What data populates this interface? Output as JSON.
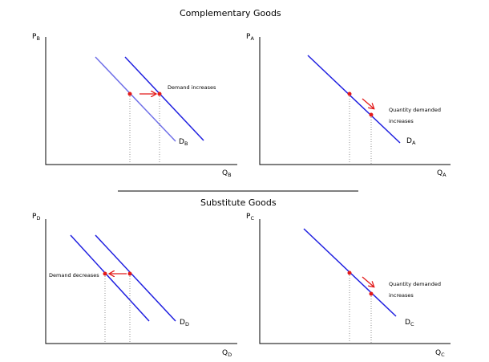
{
  "titles": {
    "top": "Complementary Goods",
    "bottom": "Substitute Goods"
  },
  "panels": {
    "tl": {
      "y_axis": {
        "main": "P",
        "sub": "B"
      },
      "x_axis": {
        "main": "Q",
        "sub": "B"
      },
      "curve": {
        "main": "D",
        "sub": "B"
      },
      "annotation": "Demand increases"
    },
    "tr": {
      "y_axis": {
        "main": "P",
        "sub": "A"
      },
      "x_axis": {
        "main": "Q",
        "sub": "A"
      },
      "curve": {
        "main": "D",
        "sub": "A"
      },
      "annotation_1": "Quantity demanded",
      "annotation_2": "increases"
    },
    "bl": {
      "y_axis": {
        "main": "P",
        "sub": "D"
      },
      "x_axis": {
        "main": "Q",
        "sub": "D"
      },
      "curve": {
        "main": "D",
        "sub": "D"
      },
      "annotation": "Demand decreases"
    },
    "br": {
      "y_axis": {
        "main": "P",
        "sub": "C"
      },
      "x_axis": {
        "main": "Q",
        "sub": "C"
      },
      "curve": {
        "main": "D",
        "sub": "C"
      },
      "annotation_1": "Quantity demanded",
      "annotation_2": "increases"
    }
  },
  "colors": {
    "demand_curve": "#1f1fe0",
    "original_curve": "#6f6fe8",
    "arrow": "#e21b1b",
    "point": "#e21b1b",
    "axis": "#000000"
  }
}
